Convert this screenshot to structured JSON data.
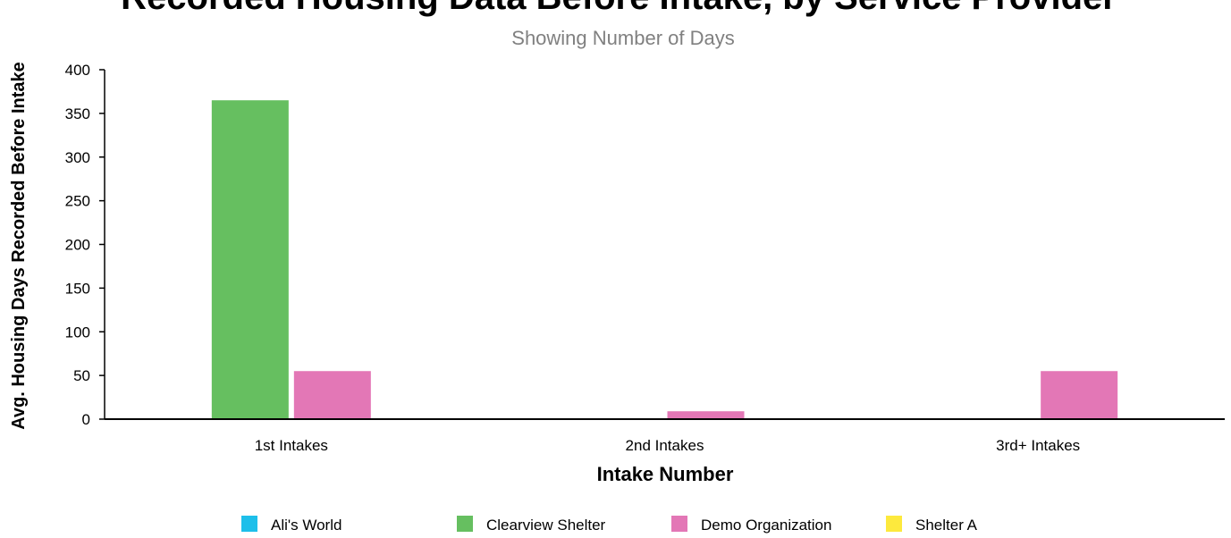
{
  "chart_data": {
    "type": "bar",
    "title": "Recorded Housing Data Before Intake, by Service Provider",
    "subtitle": "Showing Number of Days",
    "xlabel": "Intake Number",
    "ylabel": "Avg. Housing Days Recorded Before Intake",
    "categories": [
      "1st Intakes",
      "2nd Intakes",
      "3rd+ Intakes"
    ],
    "ylim": [
      0,
      400
    ],
    "yticks": [
      0,
      50,
      100,
      150,
      200,
      250,
      300,
      350,
      400
    ],
    "grid": false,
    "legend_position": "bottom",
    "series": [
      {
        "name": "Ali's World",
        "color": "#1ebfea",
        "values": [
          0,
          0,
          0
        ]
      },
      {
        "name": "Clearview Shelter",
        "color": "#66bf60",
        "values": [
          365,
          0,
          0
        ]
      },
      {
        "name": "Demo Organization",
        "color": "#e377b6",
        "values": [
          55,
          9,
          55
        ]
      },
      {
        "name": "Shelter A",
        "color": "#fde93d",
        "values": [
          0,
          0,
          0
        ]
      }
    ]
  }
}
